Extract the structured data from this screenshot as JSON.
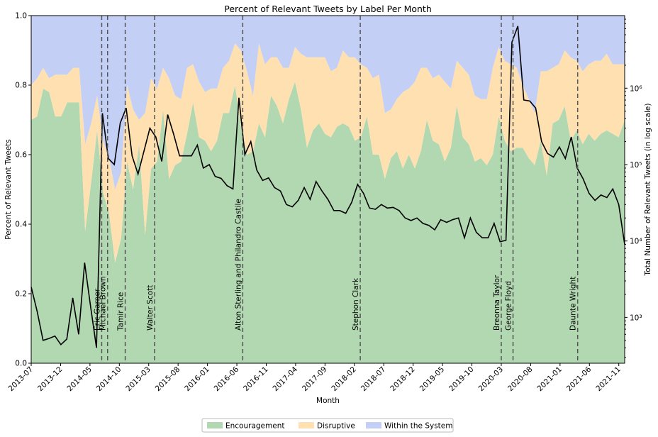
{
  "chart_data": {
    "type": "area",
    "title": "Percent of Relevant Tweets by Label Per Month",
    "xlabel": "Month",
    "ylabel": "Percent of Relevant Tweets",
    "ylabel_right": "Total Number of Relevant Tweets (in log scale)",
    "ylim": [
      0,
      1
    ],
    "y_right_scale": "log",
    "y_right_ticks": [
      "10³",
      "10⁴",
      "10⁵",
      "10⁶"
    ],
    "y_ticks": [
      "0.0",
      "0.2",
      "0.4",
      "0.6",
      "0.8",
      "1.0"
    ],
    "x_ticks": [
      "2013-07",
      "2013-12",
      "2014-05",
      "2014-10",
      "2015-03",
      "2015-08",
      "2016-01",
      "2016-06",
      "2016-11",
      "2017-04",
      "2017-09",
      "2018-02",
      "2018-07",
      "2018-12",
      "2019-05",
      "2019-10",
      "2020-03",
      "2020-08",
      "2021-01",
      "2021-06",
      "2021-11"
    ],
    "x_start": "2013-07",
    "x_end": "2021-12",
    "colors": {
      "encouragement": "#b2d8b2",
      "disruptive": "#ffe0b0",
      "within": "#c4cff5",
      "line": "#000000",
      "event_line": "#555555"
    },
    "series": [
      {
        "name": "Encouragement",
        "values": [
          0.7,
          0.71,
          0.79,
          0.78,
          0.71,
          0.71,
          0.75,
          0.75,
          0.75,
          0.38,
          0.52,
          0.67,
          0.49,
          0.43,
          0.29,
          0.36,
          0.58,
          0.5,
          0.63,
          0.37,
          0.56,
          0.58,
          0.73,
          0.53,
          0.57,
          0.58,
          0.66,
          0.75,
          0.65,
          0.64,
          0.61,
          0.64,
          0.72,
          0.72,
          0.8,
          0.68,
          0.6,
          0.61,
          0.69,
          0.65,
          0.77,
          0.74,
          0.69,
          0.76,
          0.81,
          0.73,
          0.62,
          0.67,
          0.69,
          0.66,
          0.65,
          0.68,
          0.69,
          0.68,
          0.64,
          0.65,
          0.71,
          0.6,
          0.6,
          0.53,
          0.59,
          0.61,
          0.56,
          0.6,
          0.56,
          0.61,
          0.7,
          0.64,
          0.63,
          0.58,
          0.62,
          0.74,
          0.65,
          0.63,
          0.58,
          0.59,
          0.57,
          0.6,
          0.71,
          0.64,
          0.61,
          0.62,
          0.62,
          0.59,
          0.57,
          0.64,
          0.54,
          0.69,
          0.7,
          0.74,
          0.64,
          0.67,
          0.63,
          0.66,
          0.64,
          0.66,
          0.67,
          0.66,
          0.65,
          0.7
        ],
        "display": "stacked-fill"
      },
      {
        "name": "Disruptive",
        "values": [
          0.1,
          0.11,
          0.06,
          0.04,
          0.12,
          0.12,
          0.08,
          0.1,
          0.1,
          0.25,
          0.17,
          0.1,
          0.15,
          0.16,
          0.21,
          0.19,
          0.22,
          0.23,
          0.07,
          0.35,
          0.26,
          0.21,
          0.12,
          0.29,
          0.2,
          0.18,
          0.19,
          0.11,
          0.16,
          0.14,
          0.18,
          0.15,
          0.13,
          0.15,
          0.12,
          0.22,
          0.24,
          0.16,
          0.23,
          0.21,
          0.11,
          0.14,
          0.16,
          0.09,
          0.1,
          0.16,
          0.26,
          0.21,
          0.19,
          0.22,
          0.19,
          0.17,
          0.21,
          0.2,
          0.24,
          0.21,
          0.14,
          0.22,
          0.23,
          0.19,
          0.14,
          0.15,
          0.22,
          0.19,
          0.25,
          0.24,
          0.15,
          0.18,
          0.2,
          0.23,
          0.17,
          0.13,
          0.2,
          0.2,
          0.19,
          0.17,
          0.19,
          0.25,
          0.2,
          0.23,
          0.25,
          0.23,
          0.18,
          0.17,
          0.15,
          0.2,
          0.3,
          0.16,
          0.16,
          0.16,
          0.24,
          0.2,
          0.21,
          0.2,
          0.23,
          0.21,
          0.22,
          0.2,
          0.21,
          0.16
        ],
        "display": "stacked-fill"
      },
      {
        "name": "Within the System",
        "values": [
          0.2,
          0.18,
          0.15,
          0.18,
          0.17,
          0.17,
          0.17,
          0.15,
          0.15,
          0.37,
          0.31,
          0.23,
          0.36,
          0.41,
          0.5,
          0.45,
          0.2,
          0.27,
          0.3,
          0.28,
          0.18,
          0.21,
          0.15,
          0.18,
          0.23,
          0.24,
          0.15,
          0.14,
          0.19,
          0.22,
          0.21,
          0.21,
          0.15,
          0.13,
          0.08,
          0.1,
          0.16,
          0.23,
          0.08,
          0.14,
          0.12,
          0.12,
          0.15,
          0.15,
          0.09,
          0.11,
          0.12,
          0.12,
          0.12,
          0.12,
          0.16,
          0.15,
          0.1,
          0.12,
          0.12,
          0.14,
          0.15,
          0.18,
          0.17,
          0.28,
          0.27,
          0.24,
          0.22,
          0.21,
          0.19,
          0.15,
          0.15,
          0.18,
          0.17,
          0.19,
          0.21,
          0.13,
          0.15,
          0.17,
          0.23,
          0.24,
          0.24,
          0.15,
          0.09,
          0.13,
          0.14,
          0.15,
          0.2,
          0.24,
          0.28,
          0.16,
          0.16,
          0.15,
          0.14,
          0.1,
          0.12,
          0.13,
          0.16,
          0.14,
          0.13,
          0.13,
          0.11,
          0.14,
          0.14,
          0.14
        ],
        "display": "stacked-fill"
      },
      {
        "name": "",
        "axis": "right-log",
        "values": [
          2500,
          1200,
          500,
          530,
          570,
          440,
          520,
          1800,
          600,
          5200,
          1400,
          400,
          470000,
          120000,
          100000,
          350000,
          550000,
          130000,
          75000,
          150000,
          300000,
          230000,
          110000,
          450000,
          250000,
          130000,
          130000,
          130000,
          180000,
          90000,
          100000,
          70000,
          66000,
          53000,
          48000,
          750000,
          135000,
          200000,
          85000,
          62000,
          67000,
          50000,
          45000,
          30000,
          28000,
          34000,
          50000,
          35000,
          60000,
          45000,
          35000,
          25000,
          25000,
          23000,
          32000,
          55000,
          42000,
          27000,
          26000,
          30000,
          27000,
          27500,
          25000,
          20000,
          18500,
          20000,
          17000,
          16000,
          14000,
          19000,
          17500,
          19000,
          20000,
          11000,
          20000,
          13000,
          11000,
          11000,
          17000,
          9800,
          10200,
          4000000,
          6500000,
          700000,
          680000,
          550000,
          200000,
          140000,
          125000,
          170000,
          120000,
          230000,
          90000,
          65000,
          42000,
          34000,
          40000,
          37000,
          48000,
          30000,
          9000
        ]
      }
    ],
    "events": [
      {
        "label": "Eric Garner",
        "date": "2014-07"
      },
      {
        "label": "Michael Brown",
        "date": "2014-08"
      },
      {
        "label": "Tamir Rice",
        "date": "2014-11"
      },
      {
        "label": "Walter Scott",
        "date": "2015-04"
      },
      {
        "label": "Alton Sterling and Philandro Castile",
        "date": "2016-07"
      },
      {
        "label": "Stephon Clark",
        "date": "2018-03"
      },
      {
        "label": "Breonna Taylor",
        "date": "2020-03"
      },
      {
        "label": "George Floyd",
        "date": "2020-05"
      },
      {
        "label": "Daunte Wright",
        "date": "2021-04"
      }
    ],
    "legend": {
      "placement": "bottom-center",
      "entries": [
        "Encouragement",
        "Disruptive",
        "Within the System"
      ]
    }
  }
}
